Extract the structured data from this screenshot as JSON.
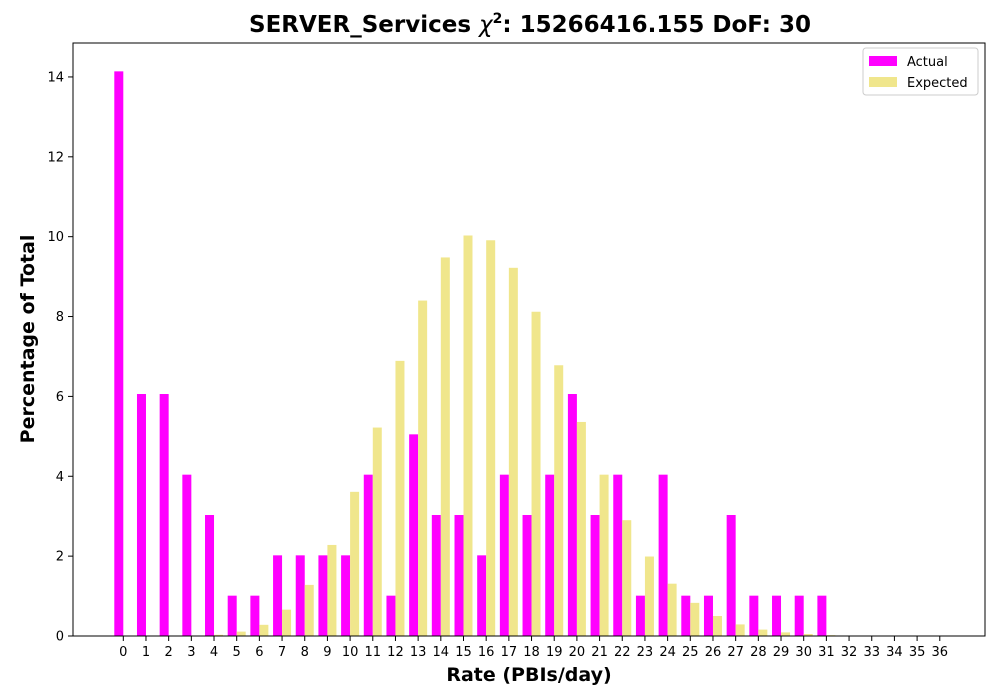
{
  "chart_data": {
    "type": "bar",
    "title_prefix": "SERVER_Services ",
    "title_chi": "χ",
    "title_sup": "2",
    "title_suffix": ": 15266416.155 DoF: 30",
    "xlabel": "Rate (PBIs/day)",
    "ylabel": "Percentage of Total",
    "ylim": [
      0,
      14.85
    ],
    "yticks": [
      0,
      2,
      4,
      6,
      8,
      10,
      12,
      14
    ],
    "categories": [
      "0",
      "1",
      "2",
      "3",
      "4",
      "5",
      "6",
      "7",
      "8",
      "9",
      "10",
      "11",
      "12",
      "13",
      "14",
      "15",
      "16",
      "17",
      "18",
      "19",
      "20",
      "21",
      "22",
      "23",
      "24",
      "25",
      "26",
      "27",
      "28",
      "29",
      "30",
      "31",
      "32",
      "33",
      "34",
      "35",
      "36"
    ],
    "legend_position": "upper-right",
    "grid": false,
    "series": [
      {
        "name": "Actual",
        "color": "#ff00ff",
        "values": [
          14.14,
          6.06,
          6.06,
          4.04,
          3.03,
          1.01,
          1.01,
          2.02,
          2.02,
          2.02,
          2.02,
          4.04,
          1.01,
          5.05,
          3.03,
          3.03,
          2.02,
          4.04,
          3.03,
          4.04,
          6.06,
          3.03,
          4.04,
          1.01,
          4.04,
          1.01,
          1.01,
          3.03,
          1.01,
          1.01,
          1.01,
          1.01,
          0,
          0,
          0,
          0,
          0
        ]
      },
      {
        "name": "Expected",
        "color": "#f0e68c",
        "values": [
          0,
          0,
          0,
          0,
          0.03,
          0.11,
          0.28,
          0.66,
          1.28,
          2.28,
          3.61,
          5.22,
          6.89,
          8.4,
          9.48,
          10.03,
          9.91,
          9.22,
          8.12,
          6.78,
          5.36,
          4.04,
          2.9,
          1.99,
          1.31,
          0.83,
          0.5,
          0.29,
          0.16,
          0.09,
          0.05,
          0.02,
          0.01,
          0.005,
          0.002,
          0.001,
          0
        ]
      }
    ]
  }
}
